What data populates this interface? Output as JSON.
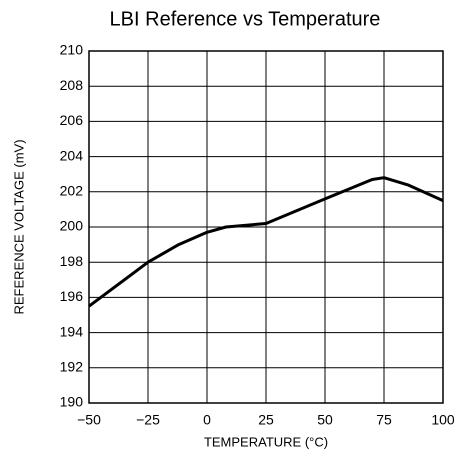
{
  "chart_data": {
    "type": "line",
    "title": "LBI Reference vs Temperature",
    "x_label": "TEMPERATURE (°C)",
    "y_label": "REFERENCE VOLTAGE (mV)",
    "x": [
      -50,
      -25,
      -12,
      0,
      8,
      25,
      50,
      70,
      75,
      85,
      100
    ],
    "values": [
      195.5,
      198,
      199,
      199.7,
      200,
      200.2,
      201.6,
      202.7,
      202.8,
      202.4,
      201.5
    ],
    "color": "#000000",
    "xlim": [
      -50,
      100
    ],
    "xticks": [
      {
        "value": -50,
        "label": "−50"
      },
      {
        "value": -25,
        "label": "−25"
      },
      0,
      25,
      50,
      75,
      100
    ],
    "ylim": [
      190,
      210
    ],
    "yticks": [
      190,
      192,
      194,
      196,
      198,
      200,
      202,
      204,
      206,
      208,
      210
    ],
    "grid": true
  }
}
